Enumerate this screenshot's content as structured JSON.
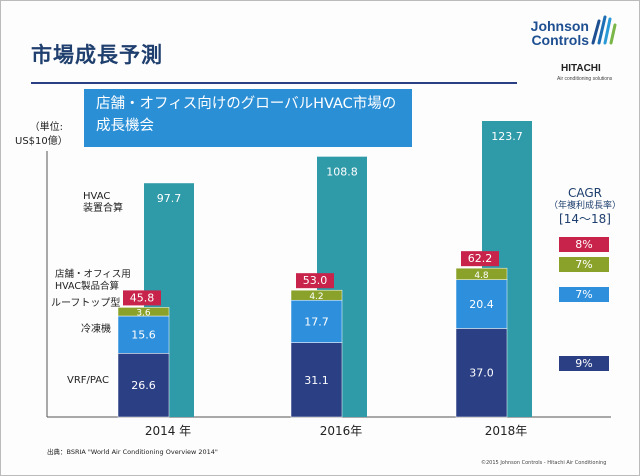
{
  "title": "市場成長予測",
  "logos": {
    "jc_line1": "Johnson",
    "jc_line2": "Controls",
    "hitachi": "HITACHI",
    "hitachi_sub": "Air conditioning solutions"
  },
  "banner": {
    "line1": "店舗・オフィス向けのグローバルHVAC市場の",
    "line2": "成長機会"
  },
  "unit": {
    "line1": "（単位:",
    "line2": "US$10億）"
  },
  "labels": {
    "hvac_total": [
      "HVAC",
      "装置合算"
    ],
    "office_total": [
      "店舗・オフィス用",
      "HVAC製品合算"
    ],
    "rooftop": "ルーフトップ型",
    "chiller": "冷凍機",
    "vrf": "VRF/PAC"
  },
  "cagr": {
    "title": "CAGR",
    "subtitle": "（年複利成長率）",
    "range": "[14〜18]",
    "values": [
      {
        "label": "8%",
        "color": "#c8234a"
      },
      {
        "label": "7%",
        "color": "#8aa22a"
      },
      {
        "label": "7%",
        "color": "#2e8fdc"
      },
      {
        "label": "9%",
        "color": "#2b3f84"
      }
    ]
  },
  "source": "出典：BSRIA \"World Air Conditioning Overview 2014\"",
  "copyright": "©2015 Johnson Controls - Hitachi Air Conditioning",
  "colors": {
    "hvac_total": "#2f9aa8",
    "vrf": "#2b3f84",
    "chiller": "#2e8fdc",
    "rooftop": "#8aa22a",
    "office_total": "#c8234a"
  },
  "chart_data": {
    "type": "bar",
    "categories": [
      "2014 年",
      "2016年",
      "2018年"
    ],
    "ylabel": "（単位: US$10億）",
    "series": [
      {
        "name": "HVAC 装置合算",
        "values": [
          97.7,
          108.8,
          123.7
        ],
        "labels": [
          "97.7",
          "108.8",
          "123.7"
        ]
      },
      {
        "name": "VRF/PAC",
        "values": [
          26.6,
          31.1,
          37.0
        ],
        "labels": [
          "26.6",
          "31.1",
          "37.0"
        ],
        "stack": "office"
      },
      {
        "name": "冷凍機",
        "values": [
          15.6,
          17.7,
          20.4
        ],
        "labels": [
          "15.6",
          "17.7",
          "20.4"
        ],
        "stack": "office"
      },
      {
        "name": "ルーフトップ型",
        "values": [
          3.6,
          4.2,
          4.8
        ],
        "labels": [
          "3.6",
          "4.2",
          "4.8"
        ],
        "stack": "office"
      },
      {
        "name": "店舗・オフィス用 HVAC製品合算",
        "values": [
          45.8,
          53.0,
          62.2
        ],
        "labels": [
          "45.8",
          "53.0",
          "62.2"
        ]
      }
    ]
  }
}
